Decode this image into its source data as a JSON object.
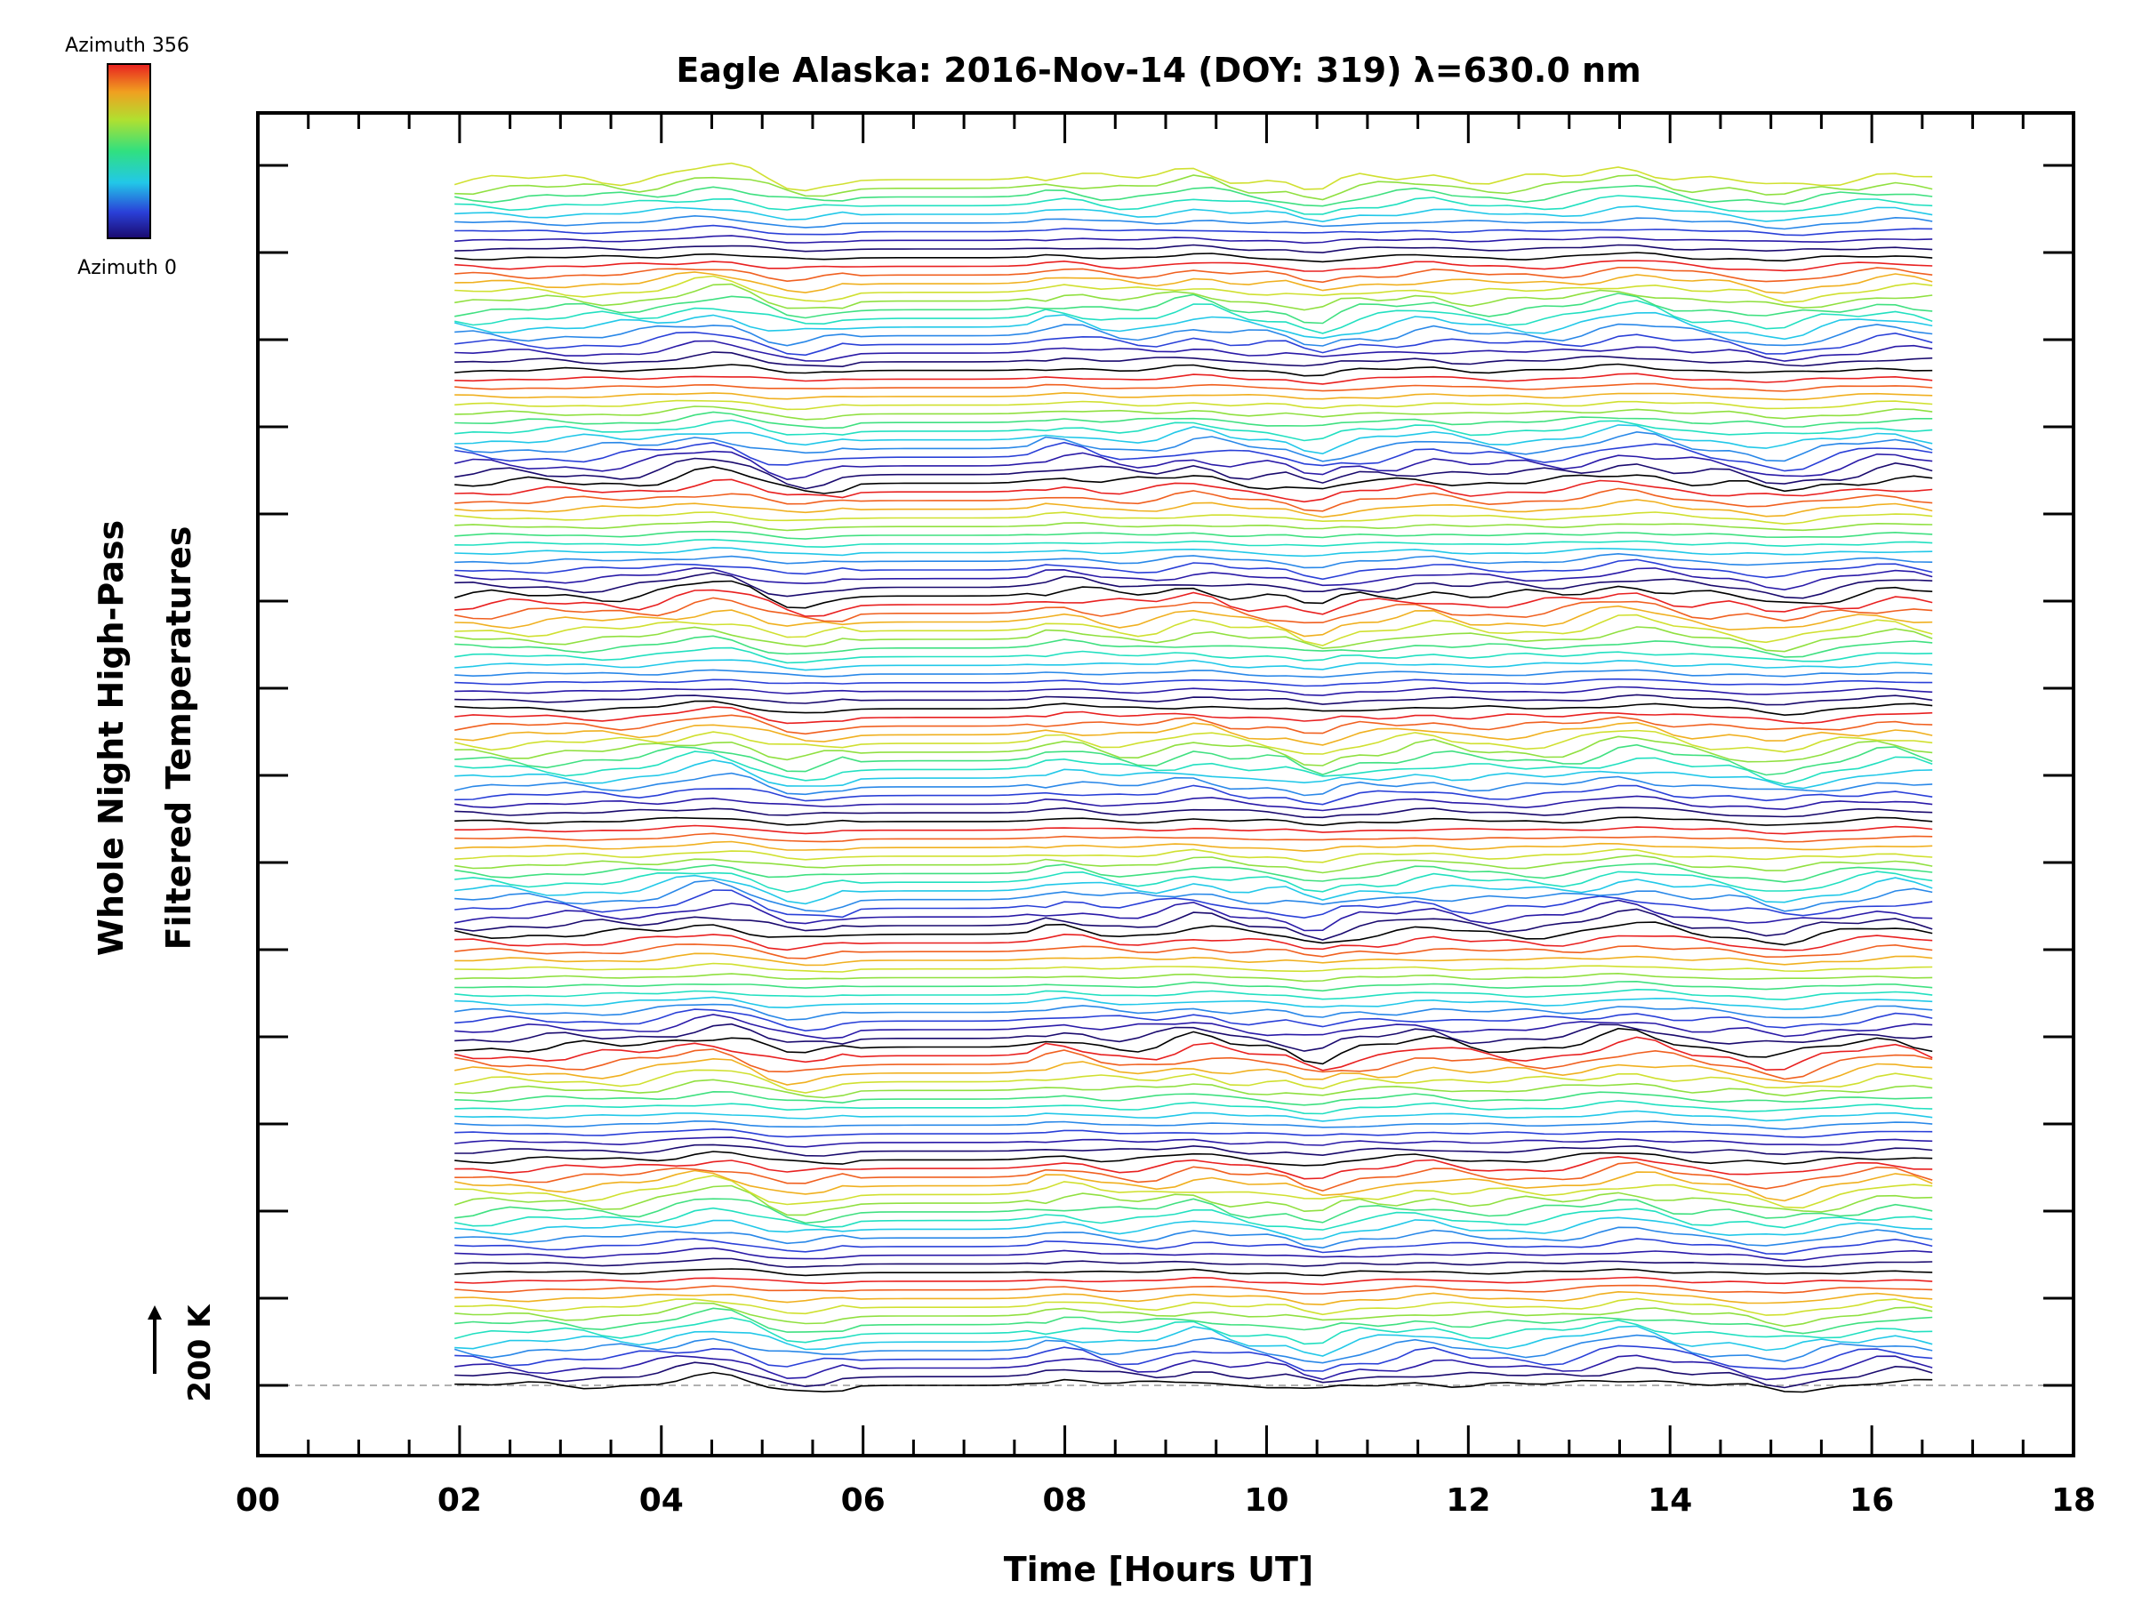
{
  "chart_data": {
    "type": "line",
    "title": "Eagle Alaska: 2016-Nov-14 (DOY: 319) λ=630.0 nm",
    "xlabel": "Time [Hours UT]",
    "ylabel_lines": [
      "Whole Night High-Pass",
      "Filtered Temperatures"
    ],
    "xlim": [
      0,
      18
    ],
    "x_ticks": [
      "00",
      "02",
      "04",
      "06",
      "08",
      "10",
      "12",
      "14",
      "16",
      "18"
    ],
    "x_ticks_values": [
      0,
      2,
      4,
      6,
      8,
      10,
      12,
      14,
      16,
      18
    ],
    "y_reference_label": "200 K",
    "y_reference_offset_K": 200,
    "stack_count": 140,
    "data_start_hour": 1.95,
    "data_end_hour": 16.6,
    "legend": {
      "type": "colorbar",
      "max_label": "Azimuth 356",
      "min_label": "Azimuth 0",
      "max_value": 356,
      "min_value": 0,
      "colormap": "rainbow",
      "placement": "top-left"
    },
    "series_color_cycle": [
      "#000000",
      "#1a0a6e",
      "#2a1aa8",
      "#2a40d8",
      "#2a88e8",
      "#22c8e8",
      "#22e0c0",
      "#40e080",
      "#90e040",
      "#d0e030",
      "#f0b020",
      "#f06020",
      "#e82020"
    ],
    "grid": false,
    "baseline_style": "dashed-gray"
  }
}
